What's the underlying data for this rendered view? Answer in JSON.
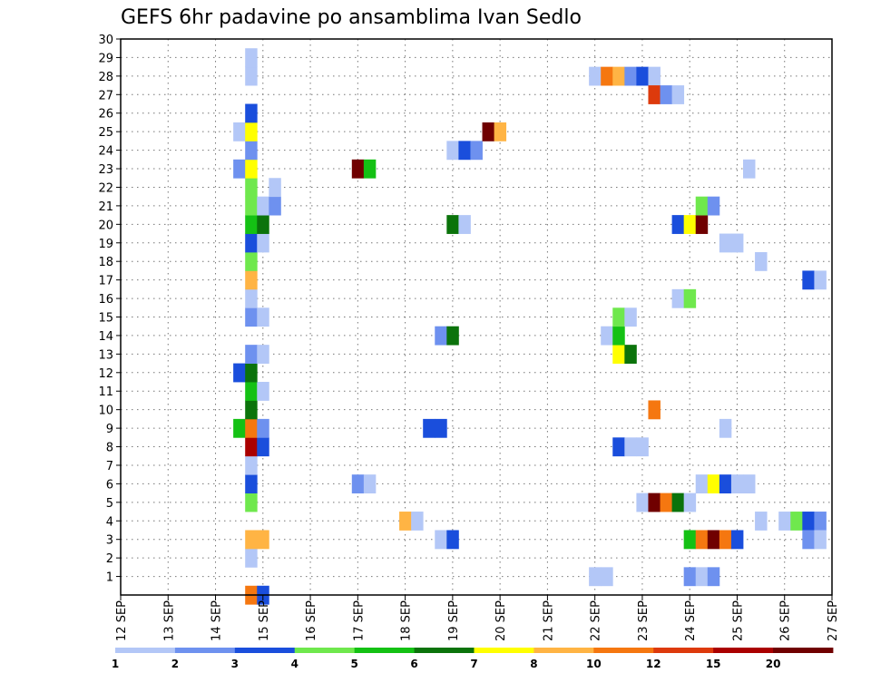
{
  "chart_data": {
    "type": "heatmap",
    "title": "GEFS 6hr padavine po ansamblima Ivan Sedlo",
    "xlabel": "",
    "ylabel": "",
    "x_tick_labels": [
      "12 SEP",
      "13 SEP",
      "14 SEP",
      "15 SEP",
      "16 SEP",
      "17 SEP",
      "18 SEP",
      "19 SEP",
      "20 SEP",
      "21 SEP",
      "22 SEP",
      "23 SEP",
      "24 SEP",
      "25 SEP",
      "26 SEP",
      "27 SEP"
    ],
    "xlim_days": [
      12,
      27
    ],
    "y_tick_labels": [
      "1",
      "2",
      "3",
      "4",
      "5",
      "6",
      "7",
      "8",
      "9",
      "10",
      "11",
      "12",
      "13",
      "14",
      "15",
      "16",
      "17",
      "18",
      "19",
      "20",
      "21",
      "22",
      "23",
      "24",
      "25",
      "26",
      "27",
      "28",
      "29",
      "30"
    ],
    "ylim": [
      0,
      30
    ],
    "grid": true,
    "colorbar": {
      "colors": [
        "#b3c7f7",
        "#6e91ef",
        "#1a4edc",
        "#6fe84d",
        "#14c114",
        "#0b730b",
        "#ffff00",
        "#ffb444",
        "#f57710",
        "#dd3a0c",
        "#aa0000",
        "#700000"
      ],
      "labels": [
        "1",
        "2",
        "3",
        "4",
        "5",
        "6",
        "7",
        "8",
        "10",
        "12",
        "15",
        "20"
      ]
    },
    "cells": [
      {
        "day": 14.75,
        "member": 0,
        "level": 8
      },
      {
        "day": 15.0,
        "member": 0,
        "level": 2
      },
      {
        "day": 14.75,
        "member": 2,
        "level": 0
      },
      {
        "day": 14.75,
        "member": 3,
        "level": 7
      },
      {
        "day": 15.0,
        "member": 3,
        "level": 7
      },
      {
        "day": 14.75,
        "member": 5,
        "level": 3
      },
      {
        "day": 14.75,
        "member": 6,
        "level": 2
      },
      {
        "day": 14.75,
        "member": 7,
        "level": 0
      },
      {
        "day": 14.75,
        "member": 8,
        "level": 10
      },
      {
        "day": 15.0,
        "member": 8,
        "level": 2
      },
      {
        "day": 14.5,
        "member": 9,
        "level": 4
      },
      {
        "day": 14.75,
        "member": 9,
        "level": 8
      },
      {
        "day": 15.0,
        "member": 9,
        "level": 1
      },
      {
        "day": 14.75,
        "member": 10,
        "level": 5
      },
      {
        "day": 14.75,
        "member": 11,
        "level": 4
      },
      {
        "day": 15.0,
        "member": 11,
        "level": 0
      },
      {
        "day": 14.5,
        "member": 12,
        "level": 2
      },
      {
        "day": 14.75,
        "member": 12,
        "level": 5
      },
      {
        "day": 14.75,
        "member": 13,
        "level": 1
      },
      {
        "day": 15.0,
        "member": 13,
        "level": 0
      },
      {
        "day": 14.75,
        "member": 15,
        "level": 1
      },
      {
        "day": 15.0,
        "member": 15,
        "level": 0
      },
      {
        "day": 14.75,
        "member": 16,
        "level": 0
      },
      {
        "day": 14.75,
        "member": 17,
        "level": 7
      },
      {
        "day": 14.75,
        "member": 18,
        "level": 3
      },
      {
        "day": 14.75,
        "member": 19,
        "level": 2
      },
      {
        "day": 15.0,
        "member": 19,
        "level": 0
      },
      {
        "day": 14.75,
        "member": 20,
        "level": 4
      },
      {
        "day": 15.0,
        "member": 20,
        "level": 5
      },
      {
        "day": 14.75,
        "member": 21,
        "level": 3
      },
      {
        "day": 15.0,
        "member": 21,
        "level": 0
      },
      {
        "day": 15.25,
        "member": 21,
        "level": 1
      },
      {
        "day": 14.75,
        "member": 22,
        "level": 3
      },
      {
        "day": 15.25,
        "member": 22,
        "level": 0
      },
      {
        "day": 14.5,
        "member": 23,
        "level": 1
      },
      {
        "day": 14.75,
        "member": 23,
        "level": 6
      },
      {
        "day": 14.75,
        "member": 24,
        "level": 1
      },
      {
        "day": 14.5,
        "member": 25,
        "level": 0
      },
      {
        "day": 14.75,
        "member": 25,
        "level": 6
      },
      {
        "day": 14.75,
        "member": 26,
        "level": 2
      },
      {
        "day": 14.75,
        "member": 28,
        "level": 0
      },
      {
        "day": 14.75,
        "member": 29,
        "level": 0
      },
      {
        "day": 17.0,
        "member": 6,
        "level": 1
      },
      {
        "day": 17.25,
        "member": 6,
        "level": 0
      },
      {
        "day": 17.0,
        "member": 23,
        "level": 11
      },
      {
        "day": 17.25,
        "member": 23,
        "level": 4
      },
      {
        "day": 18.0,
        "member": 4,
        "level": 7
      },
      {
        "day": 18.25,
        "member": 4,
        "level": 0
      },
      {
        "day": 18.5,
        "member": 9,
        "level": 2
      },
      {
        "day": 18.75,
        "member": 9,
        "level": 2
      },
      {
        "day": 18.75,
        "member": 3,
        "level": 0
      },
      {
        "day": 19.0,
        "member": 3,
        "level": 2
      },
      {
        "day": 18.75,
        "member": 14,
        "level": 1
      },
      {
        "day": 19.0,
        "member": 14,
        "level": 5
      },
      {
        "day": 19.0,
        "member": 20,
        "level": 5
      },
      {
        "day": 19.25,
        "member": 20,
        "level": 0
      },
      {
        "day": 19.0,
        "member": 24,
        "level": 0
      },
      {
        "day": 19.25,
        "member": 24,
        "level": 2
      },
      {
        "day": 19.5,
        "member": 24,
        "level": 1
      },
      {
        "day": 19.75,
        "member": 25,
        "level": 11
      },
      {
        "day": 20.0,
        "member": 25,
        "level": 7
      },
      {
        "day": 22.0,
        "member": 1,
        "level": 0
      },
      {
        "day": 22.25,
        "member": 1,
        "level": 0
      },
      {
        "day": 22.0,
        "member": 28,
        "level": 0
      },
      {
        "day": 22.25,
        "member": 28,
        "level": 8
      },
      {
        "day": 22.5,
        "member": 28,
        "level": 7
      },
      {
        "day": 22.75,
        "member": 28,
        "level": 1
      },
      {
        "day": 23.0,
        "member": 28,
        "level": 2
      },
      {
        "day": 23.25,
        "member": 28,
        "level": 0
      },
      {
        "day": 22.5,
        "member": 8,
        "level": 2
      },
      {
        "day": 22.75,
        "member": 8,
        "level": 0
      },
      {
        "day": 23.0,
        "member": 8,
        "level": 0
      },
      {
        "day": 22.5,
        "member": 13,
        "level": 6
      },
      {
        "day": 22.75,
        "member": 13,
        "level": 5
      },
      {
        "day": 22.25,
        "member": 14,
        "level": 0
      },
      {
        "day": 22.5,
        "member": 14,
        "level": 4
      },
      {
        "day": 22.5,
        "member": 15,
        "level": 3
      },
      {
        "day": 22.75,
        "member": 15,
        "level": 0
      },
      {
        "day": 23.0,
        "member": 5,
        "level": 0
      },
      {
        "day": 23.25,
        "member": 5,
        "level": 11
      },
      {
        "day": 23.5,
        "member": 5,
        "level": 8
      },
      {
        "day": 23.75,
        "member": 5,
        "level": 5
      },
      {
        "day": 24.0,
        "member": 5,
        "level": 0
      },
      {
        "day": 23.25,
        "member": 10,
        "level": 8
      },
      {
        "day": 23.25,
        "member": 27,
        "level": 9
      },
      {
        "day": 23.5,
        "member": 27,
        "level": 1
      },
      {
        "day": 23.75,
        "member": 27,
        "level": 0
      },
      {
        "day": 23.75,
        "member": 20,
        "level": 2
      },
      {
        "day": 24.0,
        "member": 20,
        "level": 6
      },
      {
        "day": 24.25,
        "member": 20,
        "level": 11
      },
      {
        "day": 23.75,
        "member": 16,
        "level": 0
      },
      {
        "day": 24.0,
        "member": 16,
        "level": 3
      },
      {
        "day": 24.0,
        "member": 1,
        "level": 1
      },
      {
        "day": 24.25,
        "member": 1,
        "level": 0
      },
      {
        "day": 24.5,
        "member": 1,
        "level": 1
      },
      {
        "day": 24.0,
        "member": 3,
        "level": 4
      },
      {
        "day": 24.25,
        "member": 3,
        "level": 8
      },
      {
        "day": 24.5,
        "member": 3,
        "level": 11
      },
      {
        "day": 24.75,
        "member": 3,
        "level": 8
      },
      {
        "day": 25.0,
        "member": 3,
        "level": 2
      },
      {
        "day": 24.25,
        "member": 6,
        "level": 0
      },
      {
        "day": 24.5,
        "member": 6,
        "level": 6
      },
      {
        "day": 24.75,
        "member": 6,
        "level": 2
      },
      {
        "day": 25.0,
        "member": 6,
        "level": 0
      },
      {
        "day": 25.25,
        "member": 6,
        "level": 0
      },
      {
        "day": 24.25,
        "member": 21,
        "level": 3
      },
      {
        "day": 24.5,
        "member": 21,
        "level": 1
      },
      {
        "day": 24.75,
        "member": 19,
        "level": 0
      },
      {
        "day": 25.0,
        "member": 19,
        "level": 0
      },
      {
        "day": 24.75,
        "member": 9,
        "level": 0
      },
      {
        "day": 25.25,
        "member": 23,
        "level": 0
      },
      {
        "day": 25.5,
        "member": 4,
        "level": 0
      },
      {
        "day": 25.5,
        "member": 18,
        "level": 0
      },
      {
        "day": 26.0,
        "member": 4,
        "level": 0
      },
      {
        "day": 26.25,
        "member": 4,
        "level": 3
      },
      {
        "day": 26.5,
        "member": 4,
        "level": 2
      },
      {
        "day": 26.75,
        "member": 4,
        "level": 1
      },
      {
        "day": 26.5,
        "member": 3,
        "level": 1
      },
      {
        "day": 26.75,
        "member": 3,
        "level": 0
      },
      {
        "day": 26.5,
        "member": 17,
        "level": 2
      },
      {
        "day": 26.75,
        "member": 17,
        "level": 0
      }
    ]
  }
}
